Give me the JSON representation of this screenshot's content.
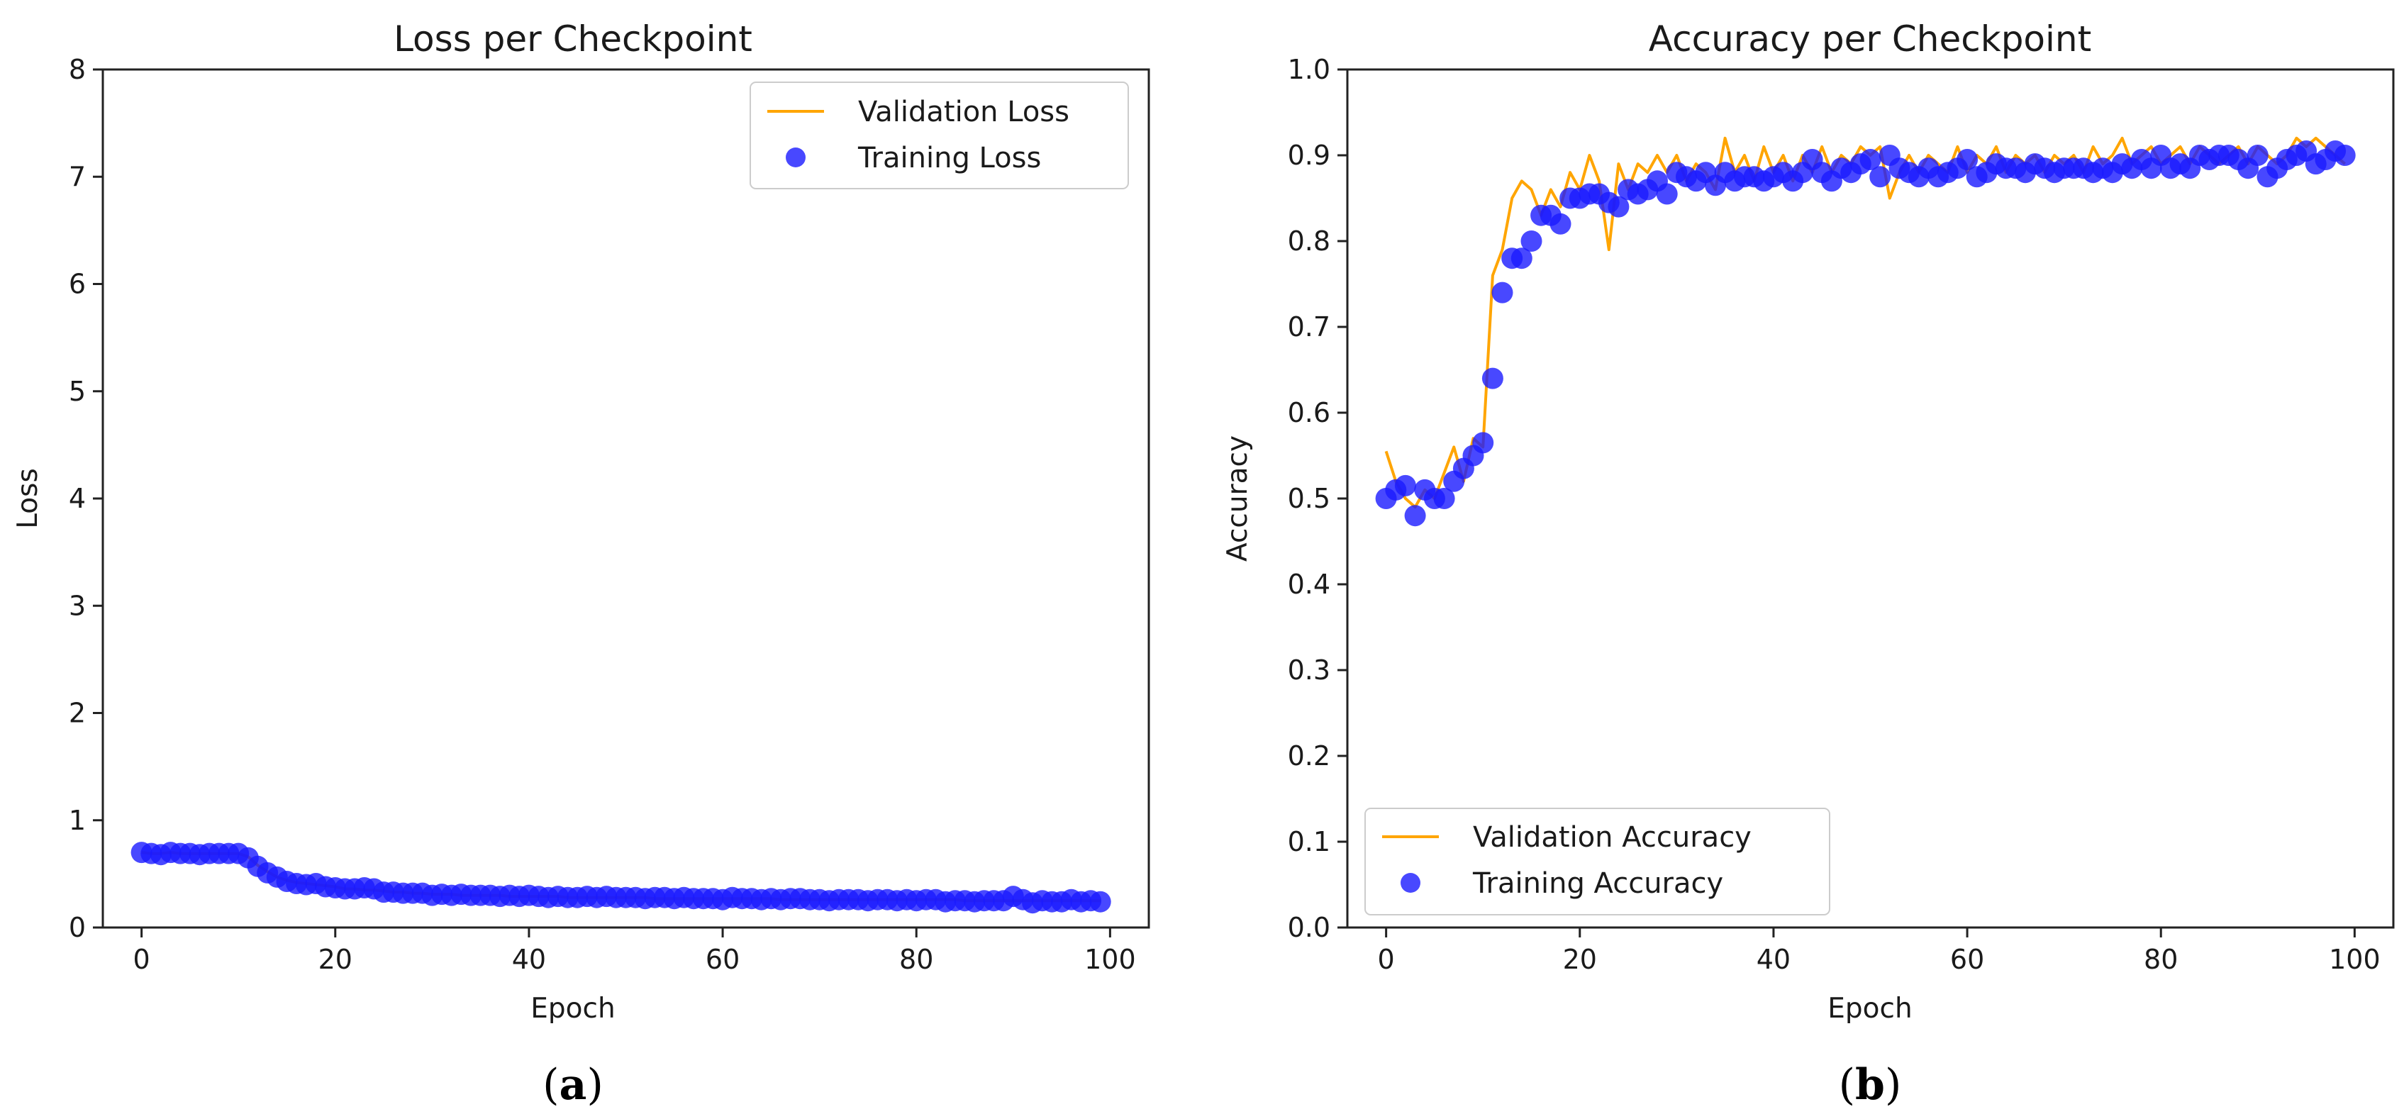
{
  "colors": {
    "validation": "#ffa500",
    "training": "#1a1aff",
    "axis": "#222222",
    "legend_border": "#cccccc"
  },
  "captions": [
    {
      "open": "(",
      "letter": "a",
      "close": ")"
    },
    {
      "open": "(",
      "letter": "b",
      "close": ")"
    }
  ],
  "chart_data": [
    {
      "type": "line+scatter",
      "title": "Loss per Checkpoint",
      "xlabel": "Epoch",
      "ylabel": "Loss",
      "xlim": [
        -4,
        104
      ],
      "ylim": [
        0,
        8
      ],
      "xticks": [
        0,
        20,
        40,
        60,
        80,
        100
      ],
      "yticks": [
        0,
        1,
        2,
        3,
        4,
        5,
        6,
        7,
        8
      ],
      "grid": false,
      "legend": "upper-right",
      "series": [
        {
          "name": "Validation Loss",
          "kind": "line",
          "x": [
            0,
            1,
            2,
            3,
            4,
            5,
            6,
            7,
            8,
            9,
            10,
            11,
            12,
            13,
            14,
            15,
            16,
            17,
            18,
            19,
            20,
            21,
            22,
            23,
            24,
            25,
            26,
            27,
            28,
            29,
            30,
            31,
            32,
            33,
            34,
            35,
            36,
            37,
            38,
            39,
            40,
            41,
            42,
            43,
            44,
            45,
            46,
            47,
            48,
            49,
            50,
            51,
            52,
            53,
            54,
            55,
            56,
            57,
            58,
            59,
            60,
            61,
            62,
            63,
            64,
            65,
            66,
            67,
            68,
            69,
            70,
            71,
            72,
            73,
            74,
            75,
            76,
            77,
            78,
            79,
            80,
            81,
            82,
            83,
            84,
            85,
            86,
            87,
            88,
            89,
            90,
            91,
            92,
            93,
            94,
            95,
            96,
            97,
            98,
            99
          ],
          "y": [
            0.7,
            0.69,
            0.69,
            0.7,
            0.69,
            0.69,
            0.69,
            0.69,
            0.69,
            0.69,
            0.69,
            0.66,
            0.58,
            0.52,
            0.47,
            0.44,
            0.42,
            0.41,
            0.4,
            0.39,
            0.38,
            0.36,
            0.36,
            0.35,
            0.35,
            0.34,
            0.33,
            0.33,
            0.32,
            0.32,
            0.31,
            0.31,
            0.31,
            0.3,
            0.3,
            0.3,
            0.3,
            0.3,
            0.29,
            0.29,
            0.29,
            0.29,
            0.29,
            0.29,
            0.28,
            0.28,
            0.28,
            0.28,
            0.28,
            0.28,
            0.28,
            0.28,
            0.28,
            0.27,
            0.27,
            0.27,
            0.27,
            0.27,
            0.27,
            0.27,
            0.27,
            0.27,
            0.27,
            0.27,
            0.27,
            0.27,
            0.26,
            0.26,
            0.26,
            0.26,
            0.26,
            0.26,
            0.26,
            0.26,
            0.26,
            0.26,
            0.26,
            0.26,
            0.26,
            0.26,
            0.26,
            0.26,
            0.26,
            0.26,
            0.26,
            0.25,
            0.25,
            0.25,
            0.25,
            0.25,
            0.25,
            0.25,
            0.25,
            0.25,
            0.25,
            0.25,
            0.25,
            0.25,
            0.25,
            0.25
          ]
        },
        {
          "name": "Training Loss",
          "kind": "scatter",
          "x": [
            0,
            1,
            2,
            3,
            4,
            5,
            6,
            7,
            8,
            9,
            10,
            11,
            12,
            13,
            14,
            15,
            16,
            17,
            18,
            19,
            20,
            21,
            22,
            23,
            24,
            25,
            26,
            27,
            28,
            29,
            30,
            31,
            32,
            33,
            34,
            35,
            36,
            37,
            38,
            39,
            40,
            41,
            42,
            43,
            44,
            45,
            46,
            47,
            48,
            49,
            50,
            51,
            52,
            53,
            54,
            55,
            56,
            57,
            58,
            59,
            60,
            61,
            62,
            63,
            64,
            65,
            66,
            67,
            68,
            69,
            70,
            71,
            72,
            73,
            74,
            75,
            76,
            77,
            78,
            79,
            80,
            81,
            82,
            83,
            84,
            85,
            86,
            87,
            88,
            89,
            90,
            91,
            92,
            93,
            94,
            95,
            96,
            97,
            98,
            99
          ],
          "y": [
            0.7,
            0.69,
            0.68,
            0.7,
            0.69,
            0.69,
            0.68,
            0.69,
            0.69,
            0.69,
            0.69,
            0.65,
            0.57,
            0.51,
            0.47,
            0.43,
            0.41,
            0.4,
            0.41,
            0.38,
            0.37,
            0.36,
            0.36,
            0.37,
            0.36,
            0.33,
            0.33,
            0.32,
            0.32,
            0.32,
            0.3,
            0.31,
            0.3,
            0.31,
            0.3,
            0.3,
            0.3,
            0.29,
            0.3,
            0.29,
            0.3,
            0.29,
            0.28,
            0.29,
            0.28,
            0.28,
            0.29,
            0.28,
            0.29,
            0.28,
            0.28,
            0.28,
            0.27,
            0.28,
            0.28,
            0.27,
            0.28,
            0.27,
            0.27,
            0.27,
            0.26,
            0.28,
            0.27,
            0.27,
            0.26,
            0.27,
            0.26,
            0.27,
            0.27,
            0.26,
            0.26,
            0.25,
            0.26,
            0.26,
            0.26,
            0.25,
            0.26,
            0.26,
            0.25,
            0.26,
            0.25,
            0.26,
            0.26,
            0.24,
            0.25,
            0.25,
            0.24,
            0.25,
            0.25,
            0.25,
            0.29,
            0.26,
            0.23,
            0.25,
            0.24,
            0.24,
            0.26,
            0.24,
            0.25,
            0.24
          ]
        }
      ]
    },
    {
      "type": "line+scatter",
      "title": "Accuracy per Checkpoint",
      "xlabel": "Epoch",
      "ylabel": "Accuracy",
      "xlim": [
        -4,
        104
      ],
      "ylim": [
        0,
        1
      ],
      "xticks": [
        0,
        20,
        40,
        60,
        80,
        100
      ],
      "yticks": [
        0.0,
        0.1,
        0.2,
        0.3,
        0.4,
        0.5,
        0.6,
        0.7,
        0.8,
        0.9,
        1.0
      ],
      "grid": false,
      "legend": "lower-left",
      "series": [
        {
          "name": "Validation Accuracy",
          "kind": "line",
          "x": [
            0,
            1,
            2,
            3,
            4,
            5,
            6,
            7,
            8,
            9,
            10,
            11,
            12,
            13,
            14,
            15,
            16,
            17,
            18,
            19,
            20,
            21,
            22,
            23,
            24,
            25,
            26,
            27,
            28,
            29,
            30,
            31,
            32,
            33,
            34,
            35,
            36,
            37,
            38,
            39,
            40,
            41,
            42,
            43,
            44,
            45,
            46,
            47,
            48,
            49,
            50,
            51,
            52,
            53,
            54,
            55,
            56,
            57,
            58,
            59,
            60,
            61,
            62,
            63,
            64,
            65,
            66,
            67,
            68,
            69,
            70,
            71,
            72,
            73,
            74,
            75,
            76,
            77,
            78,
            79,
            80,
            81,
            82,
            83,
            84,
            85,
            86,
            87,
            88,
            89,
            90,
            91,
            92,
            93,
            94,
            95,
            96,
            97,
            98,
            99
          ],
          "y": [
            0.555,
            0.52,
            0.5,
            0.49,
            0.51,
            0.5,
            0.53,
            0.56,
            0.52,
            0.57,
            0.56,
            0.76,
            0.79,
            0.85,
            0.87,
            0.86,
            0.83,
            0.86,
            0.84,
            0.88,
            0.86,
            0.9,
            0.87,
            0.79,
            0.89,
            0.86,
            0.89,
            0.88,
            0.9,
            0.88,
            0.9,
            0.87,
            0.89,
            0.88,
            0.86,
            0.92,
            0.88,
            0.9,
            0.87,
            0.91,
            0.88,
            0.9,
            0.87,
            0.9,
            0.88,
            0.91,
            0.88,
            0.9,
            0.89,
            0.91,
            0.9,
            0.91,
            0.85,
            0.88,
            0.9,
            0.88,
            0.9,
            0.89,
            0.88,
            0.91,
            0.88,
            0.9,
            0.89,
            0.91,
            0.88,
            0.9,
            0.89,
            0.9,
            0.88,
            0.9,
            0.89,
            0.9,
            0.88,
            0.91,
            0.89,
            0.9,
            0.92,
            0.89,
            0.9,
            0.91,
            0.89,
            0.9,
            0.91,
            0.89,
            0.91,
            0.9,
            0.89,
            0.9,
            0.91,
            0.89,
            0.91,
            0.9,
            0.89,
            0.9,
            0.92,
            0.91,
            0.92,
            0.91,
            0.9,
            0.89
          ]
        },
        {
          "name": "Training Accuracy",
          "kind": "scatter",
          "x": [
            0,
            1,
            2,
            3,
            4,
            5,
            6,
            7,
            8,
            9,
            10,
            11,
            12,
            13,
            14,
            15,
            16,
            17,
            18,
            19,
            20,
            21,
            22,
            23,
            24,
            25,
            26,
            27,
            28,
            29,
            30,
            31,
            32,
            33,
            34,
            35,
            36,
            37,
            38,
            39,
            40,
            41,
            42,
            43,
            44,
            45,
            46,
            47,
            48,
            49,
            50,
            51,
            52,
            53,
            54,
            55,
            56,
            57,
            58,
            59,
            60,
            61,
            62,
            63,
            64,
            65,
            66,
            67,
            68,
            69,
            70,
            71,
            72,
            73,
            74,
            75,
            76,
            77,
            78,
            79,
            80,
            81,
            82,
            83,
            84,
            85,
            86,
            87,
            88,
            89,
            90,
            91,
            92,
            93,
            94,
            95,
            96,
            97,
            98,
            99
          ],
          "y": [
            0.5,
            0.51,
            0.515,
            0.48,
            0.51,
            0.5,
            0.5,
            0.52,
            0.535,
            0.55,
            0.565,
            0.64,
            0.74,
            0.78,
            0.78,
            0.8,
            0.83,
            0.83,
            0.82,
            0.85,
            0.85,
            0.855,
            0.855,
            0.845,
            0.84,
            0.86,
            0.855,
            0.86,
            0.87,
            0.855,
            0.88,
            0.875,
            0.87,
            0.88,
            0.865,
            0.88,
            0.87,
            0.875,
            0.875,
            0.87,
            0.875,
            0.88,
            0.87,
            0.88,
            0.895,
            0.88,
            0.87,
            0.885,
            0.88,
            0.89,
            0.895,
            0.875,
            0.9,
            0.885,
            0.88,
            0.875,
            0.885,
            0.875,
            0.88,
            0.885,
            0.895,
            0.875,
            0.88,
            0.89,
            0.885,
            0.885,
            0.88,
            0.89,
            0.885,
            0.88,
            0.885,
            0.885,
            0.885,
            0.88,
            0.885,
            0.88,
            0.89,
            0.885,
            0.895,
            0.885,
            0.9,
            0.885,
            0.89,
            0.885,
            0.9,
            0.895,
            0.9,
            0.9,
            0.895,
            0.885,
            0.9,
            0.875,
            0.885,
            0.895,
            0.9,
            0.905,
            0.89,
            0.895,
            0.905,
            0.9
          ]
        }
      ]
    }
  ]
}
